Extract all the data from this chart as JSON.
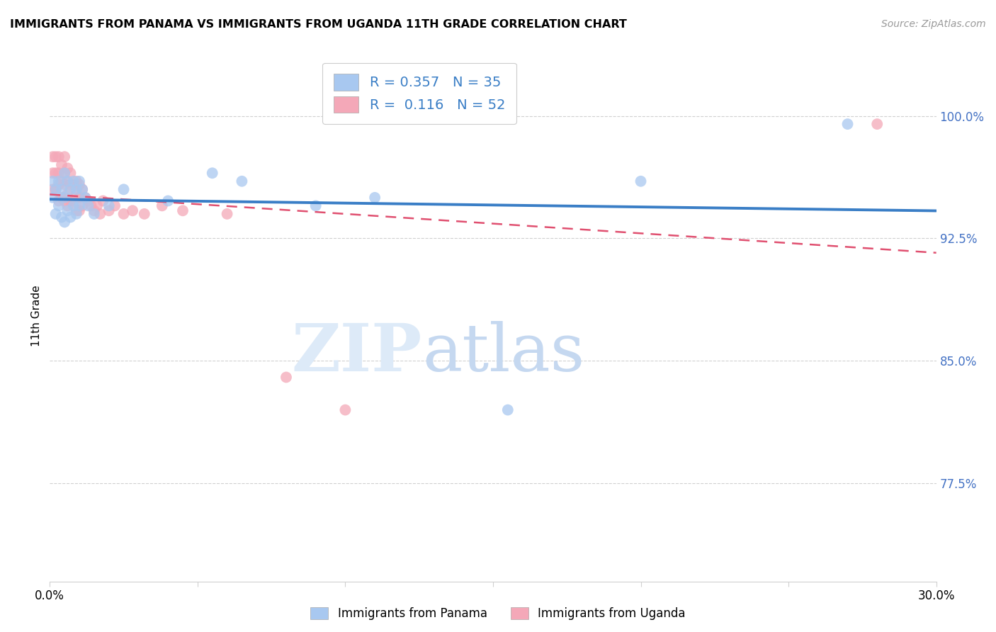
{
  "title": "IMMIGRANTS FROM PANAMA VS IMMIGRANTS FROM UGANDA 11TH GRADE CORRELATION CHART",
  "source": "Source: ZipAtlas.com",
  "ylabel": "11th Grade",
  "ytick_labels": [
    "77.5%",
    "85.0%",
    "92.5%",
    "100.0%"
  ],
  "ytick_values": [
    0.775,
    0.85,
    0.925,
    1.0
  ],
  "xlim": [
    0.0,
    0.3
  ],
  "ylim": [
    0.715,
    1.04
  ],
  "panama_R": 0.357,
  "panama_N": 35,
  "uganda_R": 0.116,
  "uganda_N": 52,
  "panama_color": "#a8c8f0",
  "uganda_color": "#f4a8b8",
  "panama_line_color": "#3a7ec6",
  "uganda_line_color": "#e05070",
  "background_color": "#ffffff",
  "panama_x": [
    0.001,
    0.001,
    0.002,
    0.002,
    0.003,
    0.003,
    0.004,
    0.004,
    0.005,
    0.005,
    0.005,
    0.006,
    0.006,
    0.007,
    0.007,
    0.008,
    0.008,
    0.009,
    0.009,
    0.01,
    0.01,
    0.011,
    0.012,
    0.013,
    0.015,
    0.02,
    0.025,
    0.04,
    0.055,
    0.065,
    0.09,
    0.11,
    0.155,
    0.2,
    0.27
  ],
  "panama_y": [
    0.96,
    0.95,
    0.955,
    0.94,
    0.96,
    0.945,
    0.955,
    0.938,
    0.965,
    0.95,
    0.935,
    0.96,
    0.942,
    0.955,
    0.938,
    0.96,
    0.945,
    0.955,
    0.94,
    0.96,
    0.945,
    0.955,
    0.95,
    0.945,
    0.94,
    0.945,
    0.955,
    0.948,
    0.965,
    0.96,
    0.945,
    0.95,
    0.82,
    0.96,
    0.995
  ],
  "uganda_x": [
    0.001,
    0.001,
    0.001,
    0.002,
    0.002,
    0.002,
    0.003,
    0.003,
    0.003,
    0.003,
    0.004,
    0.004,
    0.004,
    0.005,
    0.005,
    0.005,
    0.005,
    0.006,
    0.006,
    0.006,
    0.006,
    0.007,
    0.007,
    0.007,
    0.008,
    0.008,
    0.009,
    0.009,
    0.009,
    0.01,
    0.01,
    0.01,
    0.011,
    0.011,
    0.012,
    0.013,
    0.014,
    0.015,
    0.016,
    0.017,
    0.018,
    0.02,
    0.022,
    0.025,
    0.028,
    0.032,
    0.038,
    0.045,
    0.06,
    0.08,
    0.1,
    0.28
  ],
  "uganda_y": [
    0.975,
    0.965,
    0.955,
    0.975,
    0.965,
    0.955,
    0.975,
    0.965,
    0.958,
    0.948,
    0.97,
    0.96,
    0.95,
    0.975,
    0.965,
    0.958,
    0.948,
    0.968,
    0.96,
    0.952,
    0.945,
    0.965,
    0.958,
    0.948,
    0.958,
    0.948,
    0.96,
    0.952,
    0.942,
    0.958,
    0.95,
    0.942,
    0.955,
    0.945,
    0.95,
    0.948,
    0.945,
    0.942,
    0.945,
    0.94,
    0.948,
    0.942,
    0.945,
    0.94,
    0.942,
    0.94,
    0.945,
    0.942,
    0.94,
    0.84,
    0.82,
    0.995
  ]
}
